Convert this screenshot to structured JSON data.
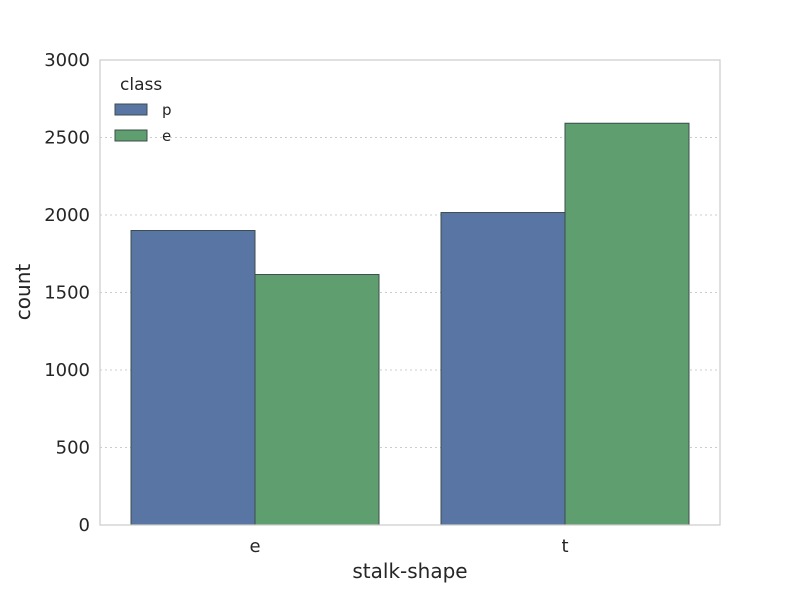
{
  "chart_data": {
    "type": "bar",
    "title": "",
    "xlabel": "stalk-shape",
    "ylabel": "count",
    "categories": [
      "e",
      "t"
    ],
    "series": [
      {
        "name": "p",
        "values": [
          1900,
          2016
        ],
        "color": "#5975a4"
      },
      {
        "name": "e",
        "values": [
          1616,
          2592
        ],
        "color": "#5f9e6e"
      }
    ],
    "ylim": [
      0,
      3000
    ],
    "yticks": [
      0,
      500,
      1000,
      1500,
      2000,
      2500,
      3000
    ],
    "grid": true,
    "legend": {
      "title": "class",
      "placement": "top-left"
    }
  }
}
